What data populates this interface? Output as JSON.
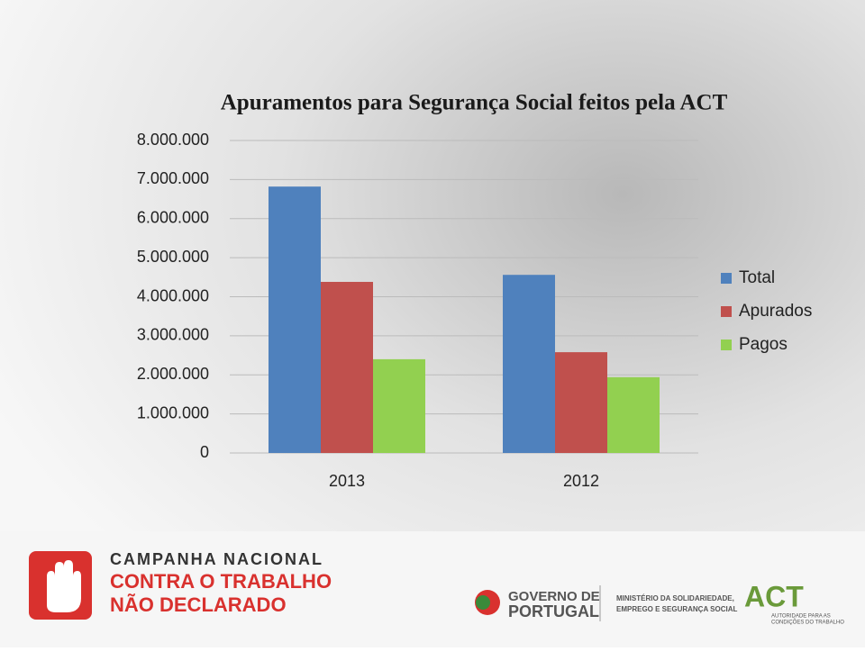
{
  "chart_data": {
    "type": "bar",
    "title": "Apuramentos para Segurança Social feitos pela ACT",
    "categories": [
      "2013",
      "2012"
    ],
    "series": [
      {
        "name": "Total",
        "color": "#4f81bd",
        "values": [
          6820000,
          4560000
        ]
      },
      {
        "name": "Apurados",
        "color": "#c0504d",
        "values": [
          4380000,
          2580000
        ]
      },
      {
        "name": "Pagos",
        "color": "#92d050",
        "values": [
          2400000,
          1940000
        ]
      }
    ],
    "ylim": [
      0,
      8000000
    ],
    "yticks": [
      0,
      {
        "value": 1000000,
        "label": "1.000.000"
      },
      {
        "value": 2000000,
        "label": "2.000.000"
      },
      {
        "value": 3000000,
        "label": "3.000.000"
      },
      {
        "value": 4000000,
        "label": "4.000.000"
      },
      {
        "value": 5000000,
        "label": "5.000.000"
      },
      {
        "value": 6000000,
        "label": "6.000.000"
      },
      {
        "value": 7000000,
        "label": "7.000.000"
      },
      {
        "value": 8000000,
        "label": "8.000.000"
      }
    ],
    "grid": true,
    "legend": "right"
  },
  "footer": {
    "campaign": [
      "CAMPANHA NACIONAL",
      "CONTRA O TRABALHO",
      "NÃO DECLARADO"
    ],
    "government": [
      "GOVERNO DE",
      "PORTUGAL"
    ],
    "ministry": [
      "MINISTÉRIO DA SOLIDARIEDADE,",
      "EMPREGO E SEGURANÇA SOCIAL"
    ],
    "act": [
      "ACT",
      "AUTORIDADE PARA AS",
      "CONDIÇÕES DO TRABALHO"
    ]
  }
}
